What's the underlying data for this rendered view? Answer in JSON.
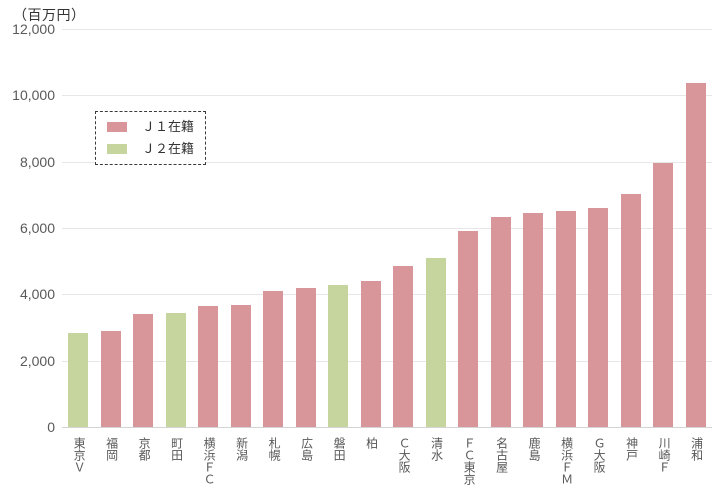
{
  "chart_data": {
    "type": "bar",
    "unit_label": "（百万円）",
    "xlabel": "",
    "ylabel": "（百万円）",
    "ylim": [
      0,
      12000
    ],
    "grid": true,
    "yticks": [
      0,
      2000,
      4000,
      6000,
      8000,
      10000,
      12000
    ],
    "ytick_labels": [
      "0",
      "2,000",
      "4,000",
      "6,000",
      "8,000",
      "10,000",
      "12,000"
    ],
    "categories": [
      "東京Ｖ",
      "福岡",
      "京都",
      "町田",
      "横浜ＦＣ",
      "新潟",
      "札幌",
      "広島",
      "磐田",
      "柏",
      "Ｃ大阪",
      "清水",
      "ＦＣ東京",
      "名古屋",
      "鹿島",
      "横浜ＦＭ",
      "Ｇ大阪",
      "神戸",
      "川崎Ｆ",
      "浦和"
    ],
    "values": [
      2840,
      2900,
      3410,
      3450,
      3640,
      3690,
      4110,
      4180,
      4280,
      4410,
      4860,
      5110,
      5910,
      6330,
      6460,
      6510,
      6590,
      7030,
      7960,
      10380
    ],
    "league": [
      "J2",
      "J1",
      "J1",
      "J2",
      "J1",
      "J1",
      "J1",
      "J1",
      "J2",
      "J1",
      "J1",
      "J2",
      "J1",
      "J1",
      "J1",
      "J1",
      "J1",
      "J1",
      "J1",
      "J1"
    ],
    "series_colors": {
      "J1": "#d8969b",
      "J2": "#c6d59d"
    },
    "legend": {
      "position": "upper-left",
      "border": "dashed",
      "entries": [
        {
          "label": "Ｊ１在籍",
          "series": "J1",
          "color": "#d8969b"
        },
        {
          "label": "Ｊ２在籍",
          "series": "J2",
          "color": "#c6d59d"
        }
      ]
    }
  }
}
